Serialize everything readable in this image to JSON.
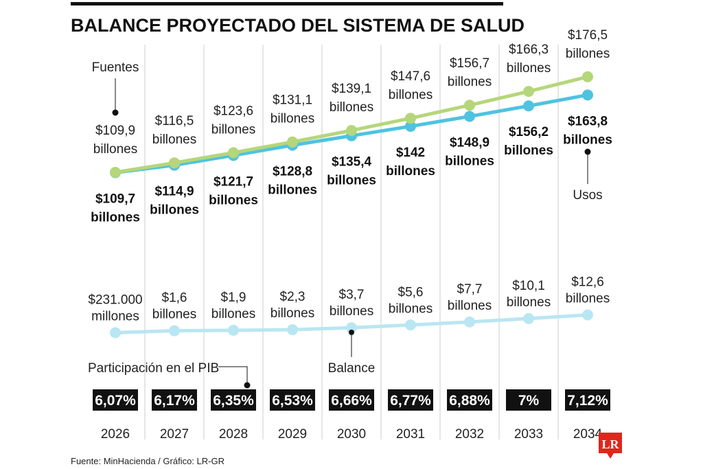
{
  "chart_data": {
    "type": "line",
    "title": "BALANCE PROYECTADO DEL SISTEMA DE SALUD",
    "categories": [
      "2026",
      "2027",
      "2028",
      "2029",
      "2030",
      "2031",
      "2032",
      "2033",
      "2034"
    ],
    "series": [
      {
        "name": "Fuentes",
        "color": "#b5d67a",
        "values": [
          109.9,
          116.5,
          123.6,
          131.1,
          139.1,
          147.6,
          156.7,
          166.3,
          176.5
        ],
        "labels": [
          [
            "$109,9",
            "billones"
          ],
          [
            "$116,5",
            "billones"
          ],
          [
            "$123,6",
            "billones"
          ],
          [
            "$131,1",
            "billones"
          ],
          [
            "$139,1",
            "billones"
          ],
          [
            "$147,6",
            "billones"
          ],
          [
            "$156,7",
            "billones"
          ],
          [
            "$166,3",
            "billones"
          ],
          [
            "$176,5",
            "billones"
          ]
        ]
      },
      {
        "name": "Usos",
        "color": "#4ec3e0",
        "values": [
          109.7,
          114.9,
          121.7,
          128.8,
          135.4,
          142,
          148.9,
          156.2,
          163.8
        ],
        "labels": [
          [
            "$109,7",
            "billones"
          ],
          [
            "$114,9",
            "billones"
          ],
          [
            "$121,7",
            "billones"
          ],
          [
            "$128,8",
            "billones"
          ],
          [
            "$135,4",
            "billones"
          ],
          [
            "$142",
            "billones"
          ],
          [
            "$148,9",
            "billones"
          ],
          [
            "$156,2",
            "billones"
          ],
          [
            "$163,8",
            "billones"
          ]
        ]
      },
      {
        "name": "Balance",
        "color": "#b9e6f2",
        "values": [
          0.231,
          1.6,
          1.9,
          2.3,
          3.7,
          5.6,
          7.7,
          10.1,
          12.6
        ],
        "labels": [
          [
            "$231.000",
            "millones"
          ],
          [
            "$1,6",
            "billones"
          ],
          [
            "$1,9",
            "billones"
          ],
          [
            "$2,3",
            "billones"
          ],
          [
            "$3,7",
            "billones"
          ],
          [
            "$5,6",
            "billones"
          ],
          [
            "$7,7",
            "billones"
          ],
          [
            "$10,1",
            "billones"
          ],
          [
            "$12,6",
            "billones"
          ]
        ]
      }
    ],
    "pib_label": "Participación en el PIB",
    "pib": [
      "6,07%",
      "6,17%",
      "6,35%",
      "6,53%",
      "6,66%",
      "6,77%",
      "6,88%",
      "7%",
      "7,12%"
    ],
    "pib_values": [
      6.07,
      6.17,
      6.35,
      6.53,
      6.66,
      6.77,
      6.88,
      7,
      7.12
    ],
    "units": "billones de pesos"
  },
  "source": "Fuente: MinHacienda / Gráfico: LR-GR",
  "logo": "LR"
}
